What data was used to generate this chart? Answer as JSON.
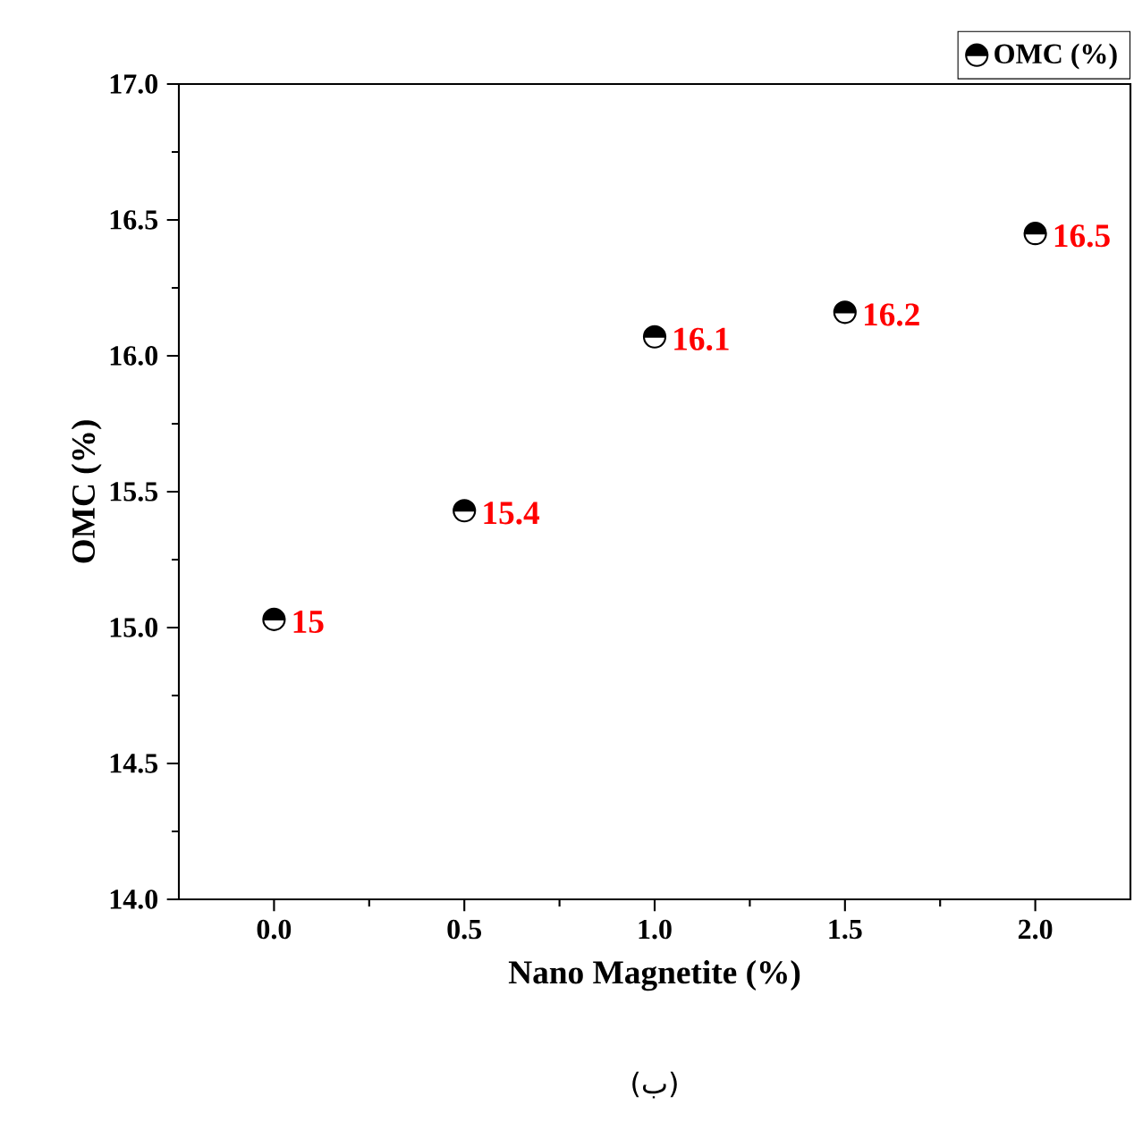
{
  "chart_data": {
    "type": "scatter",
    "xlabel": "Nano Magnetite (%)",
    "ylabel": "OMC (%)",
    "x": [
      0.0,
      0.5,
      1.0,
      1.5,
      2.0
    ],
    "series": [
      {
        "name": "OMC (%)",
        "color": "#000000",
        "values": [
          15.03,
          15.43,
          16.07,
          16.16,
          16.45
        ],
        "value_labels": [
          "15",
          "15.4",
          "16.1",
          "16.2",
          "16.5"
        ]
      }
    ],
    "xlim": [
      -0.25,
      2.25
    ],
    "ylim": [
      14.0,
      17.0
    ],
    "xticks": [
      {
        "value": 0,
        "label": "0.0"
      },
      {
        "value": 0.5,
        "label": "0.5"
      },
      {
        "value": 1,
        "label": "1.0"
      },
      {
        "value": 1.5,
        "label": "1.5"
      },
      {
        "value": 2,
        "label": "2.0"
      }
    ],
    "yticks": [
      {
        "value": 14,
        "label": "14.0"
      },
      {
        "value": 14.5,
        "label": "14.5"
      },
      {
        "value": 15,
        "label": "15.0"
      },
      {
        "value": 15.5,
        "label": "15.5"
      },
      {
        "value": 16,
        "label": "16.0"
      },
      {
        "value": 16.5,
        "label": "16.5"
      },
      {
        "value": 17,
        "label": "17.0"
      }
    ],
    "marker": "circle",
    "legend": "top right",
    "grid": false,
    "annotations": [
      "(ب)"
    ]
  }
}
